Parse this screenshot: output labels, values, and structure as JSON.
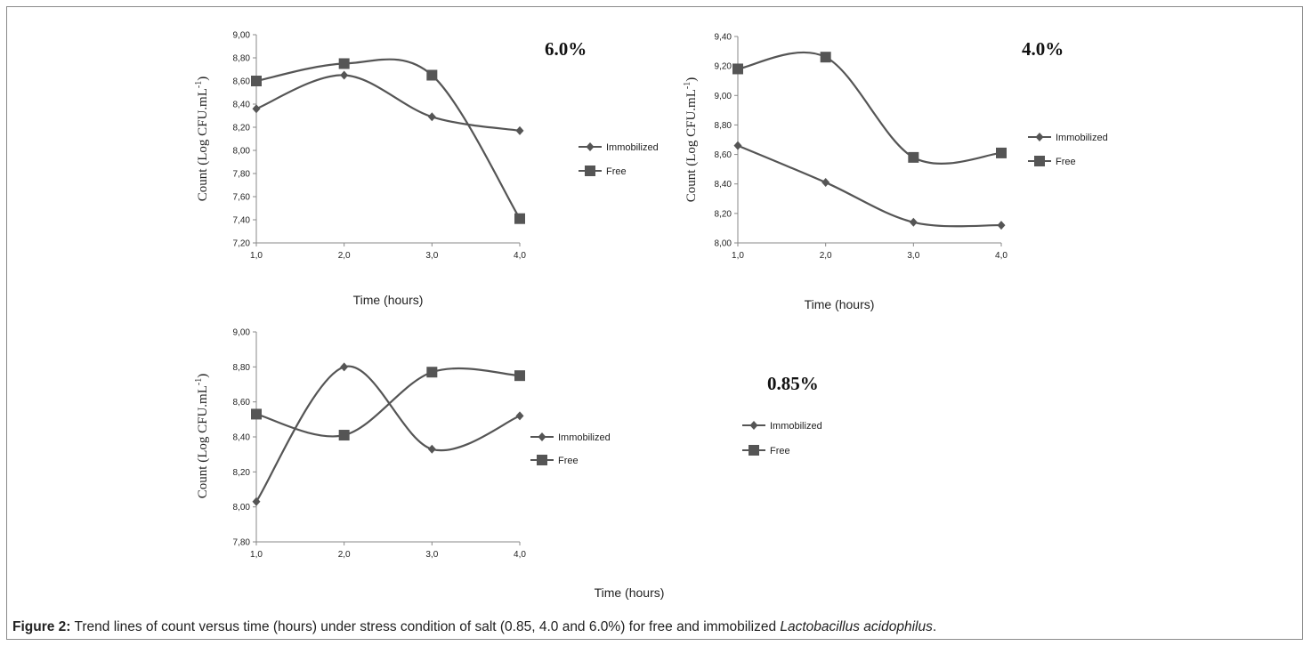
{
  "caption": {
    "label": "Figure 2:",
    "text": " Trend lines of count versus time (hours) under stress condition of salt (0.85, 4.0 and 6.0%) for free and immobilized ",
    "species": "Lactobacillus acidophilus",
    "end": "."
  },
  "colors": {
    "line": "#555555",
    "axis": "#888888",
    "text": "#222222"
  },
  "chart_data": [
    {
      "type": "line",
      "title": "6.0%",
      "xlabel": "Time (hours)",
      "ylabel": "Count (Log CFU.mL",
      "ylabel_sup": "-1",
      "ylabel_end": ")",
      "x": [
        1.0,
        2.0,
        3.0,
        4.0
      ],
      "xticks": [
        "1,0",
        "2,0",
        "3,0",
        "4,0"
      ],
      "ylim": [
        7.2,
        9.0
      ],
      "yticks": [
        "7,20",
        "7,40",
        "7,60",
        "7,80",
        "8,00",
        "8,20",
        "8,40",
        "8,60",
        "8,80",
        "9,00"
      ],
      "legend_position": "right",
      "series": [
        {
          "name": "Immobilized",
          "marker": "diamond",
          "values": [
            8.36,
            8.65,
            8.29,
            8.17
          ]
        },
        {
          "name": "Free",
          "marker": "square",
          "values": [
            8.6,
            8.75,
            8.65,
            7.41
          ]
        }
      ]
    },
    {
      "type": "line",
      "title": "4.0%",
      "xlabel": "Time (hours)",
      "ylabel": "Count (Log CFU.mL",
      "ylabel_sup": "-1",
      "ylabel_end": ")",
      "x": [
        1.0,
        2.0,
        3.0,
        4.0
      ],
      "xticks": [
        "1,0",
        "2,0",
        "3,0",
        "4,0"
      ],
      "ylim": [
        8.0,
        9.4
      ],
      "yticks": [
        "8,00",
        "8,20",
        "8,40",
        "8,60",
        "8,80",
        "9,00",
        "9,20",
        "9,40"
      ],
      "legend_position": "right",
      "series": [
        {
          "name": "Immobilized",
          "marker": "diamond",
          "values": [
            8.66,
            8.41,
            8.14,
            8.12
          ]
        },
        {
          "name": "Free",
          "marker": "square",
          "values": [
            9.18,
            9.26,
            8.58,
            8.61
          ]
        }
      ]
    },
    {
      "type": "line",
      "title": "0.85%",
      "xlabel": "Time (hours)",
      "ylabel": "Count (Log CFU.mL",
      "ylabel_sup": "-1",
      "ylabel_end": ")",
      "x": [
        1.0,
        2.0,
        3.0,
        4.0
      ],
      "xticks": [
        "1,0",
        "2,0",
        "3,0",
        "4,0"
      ],
      "ylim": [
        7.8,
        9.0
      ],
      "yticks": [
        "7,80",
        "8,00",
        "8,20",
        "8,40",
        "8,60",
        "8,80",
        "9,00"
      ],
      "legend_position": "right",
      "series": [
        {
          "name": "Immobilized",
          "marker": "diamond",
          "values": [
            8.03,
            8.8,
            8.33,
            8.52
          ]
        },
        {
          "name": "Free",
          "marker": "square",
          "values": [
            8.53,
            8.41,
            8.77,
            8.75
          ]
        }
      ]
    }
  ],
  "extra_legend": [
    {
      "name": "Immobilized",
      "marker": "diamond"
    },
    {
      "name": "Free",
      "marker": "square"
    }
  ]
}
